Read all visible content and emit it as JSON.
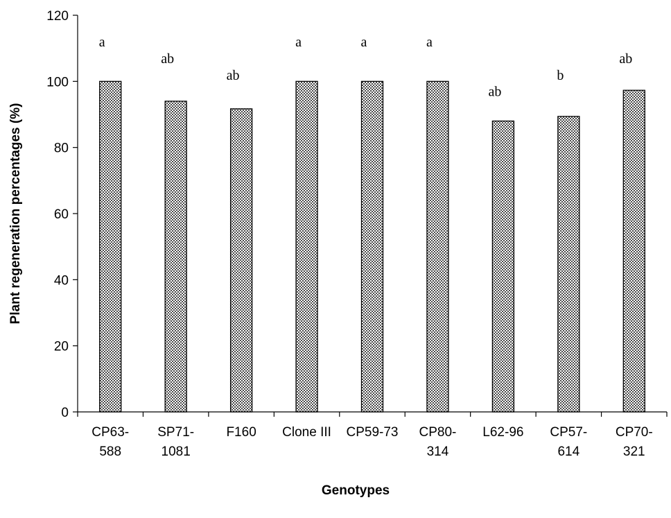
{
  "chart_data": {
    "type": "bar",
    "title": "",
    "xlabel": "Genotypes",
    "ylabel": "Plant regeneration percentages (%)",
    "ylim": [
      0,
      120
    ],
    "yticks": [
      0,
      20,
      40,
      60,
      80,
      100,
      120
    ],
    "grid": false,
    "legend": "none",
    "categories": [
      {
        "lines": [
          "CP63-",
          "588"
        ]
      },
      {
        "lines": [
          "SP71-",
          "1081"
        ]
      },
      {
        "lines": [
          "F160"
        ]
      },
      {
        "lines": [
          "Clone III"
        ]
      },
      {
        "lines": [
          "CP59-73"
        ]
      },
      {
        "lines": [
          "CP80-",
          "314"
        ]
      },
      {
        "lines": [
          "L62-96"
        ]
      },
      {
        "lines": [
          "CP57-",
          "614"
        ]
      },
      {
        "lines": [
          "CP70-",
          "321"
        ]
      }
    ],
    "values": [
      100,
      94,
      91.7,
      100,
      100,
      100,
      88,
      89.4,
      97.3
    ],
    "significance_labels": [
      "a",
      "ab",
      "ab",
      "a",
      "a",
      "a",
      "ab",
      "b",
      "ab"
    ],
    "significance_label_y": [
      112,
      107,
      102,
      112,
      112,
      112,
      97,
      102,
      107
    ],
    "colors": {
      "bar_fill": "#555555",
      "bar_pattern_bg": "#ffffff",
      "axis": "#000000"
    }
  }
}
